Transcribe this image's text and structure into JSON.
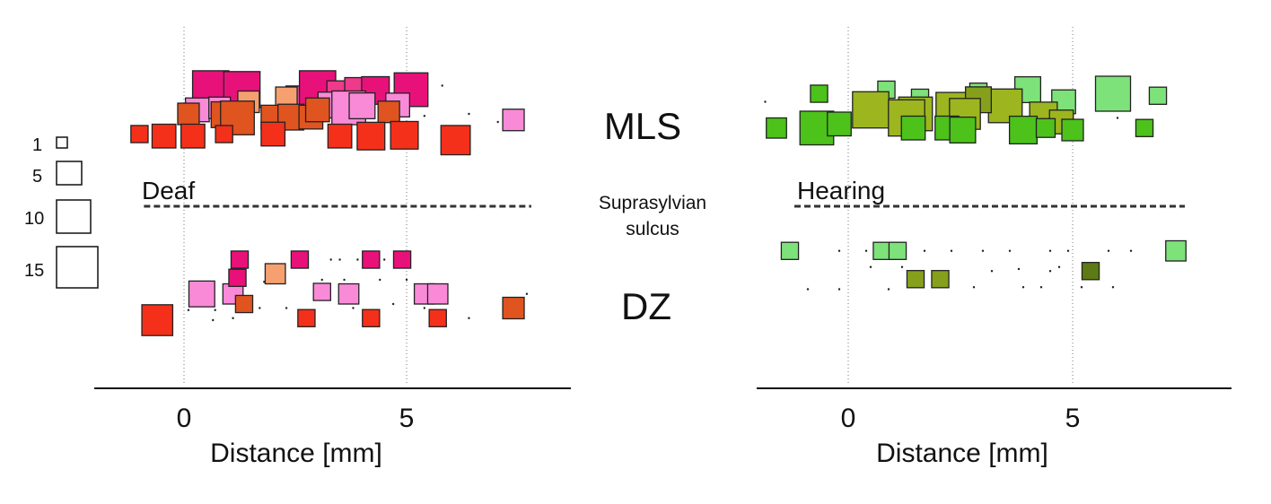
{
  "chart_data": {
    "type": "scatter",
    "marker_size_note": "square area encodes count",
    "center_labels": {
      "upper": "MLS",
      "middle": [
        "Suprasylvian",
        "sulcus"
      ],
      "lower": "DZ"
    },
    "size_legend": [
      {
        "label": "1",
        "value": 1
      },
      {
        "label": "5",
        "value": 5
      },
      {
        "label": "10",
        "value": 10
      },
      {
        "label": "15",
        "value": 15
      }
    ],
    "panels": [
      {
        "title": "Deaf",
        "xlabel": "Distance [mm]",
        "xticks": [
          0,
          5
        ],
        "xlim": [
          -2,
          8.6
        ],
        "gridlines_at": [
          0,
          5
        ],
        "sulcus_dashed_line": [
          -0.9,
          7.8
        ],
        "regions": [
          {
            "name": "MLS",
            "points": [
              {
                "x": 0.6,
                "y": 0.82,
                "size": 12,
                "color": "#E8117A"
              },
              {
                "x": 1.3,
                "y": 0.8,
                "size": 12,
                "color": "#E8117A"
              },
              {
                "x": 2.6,
                "y": 0.55,
                "size": 6,
                "color": "#EA4CA6"
              },
              {
                "x": 3.0,
                "y": 0.82,
                "size": 12,
                "color": "#E8117A"
              },
              {
                "x": 3.5,
                "y": 0.7,
                "size": 5,
                "color": "#EE3A8C"
              },
              {
                "x": 3.9,
                "y": 0.78,
                "size": 5,
                "color": "#EE3A8C"
              },
              {
                "x": 4.3,
                "y": 0.78,
                "size": 6,
                "color": "#E8117A"
              },
              {
                "x": 5.1,
                "y": 0.8,
                "size": 10,
                "color": "#E8117A"
              },
              {
                "x": 3.3,
                "y": 0.42,
                "size": 5,
                "color": "#F98AD8"
              },
              {
                "x": 3.7,
                "y": 0.35,
                "size": 10,
                "color": "#F98AD8"
              },
              {
                "x": 4.0,
                "y": 0.4,
                "size": 5,
                "color": "#F98AD8"
              },
              {
                "x": 4.8,
                "y": 0.42,
                "size": 4,
                "color": "#F98AD8"
              },
              {
                "x": 0.3,
                "y": 0.3,
                "size": 4,
                "color": "#F98AD8"
              },
              {
                "x": 0.8,
                "y": 0.35,
                "size": 3,
                "color": "#F98AD8"
              },
              {
                "x": 7.4,
                "y": 0.05,
                "size": 3,
                "color": "#F98AD8"
              },
              {
                "x": 1.45,
                "y": 0.5,
                "size": 3,
                "color": "#F6A070"
              },
              {
                "x": 2.3,
                "y": 0.6,
                "size": 3,
                "color": "#F6A070"
              },
              {
                "x": 0.1,
                "y": 0.2,
                "size": 3,
                "color": "#E0541F"
              },
              {
                "x": 0.9,
                "y": 0.18,
                "size": 5,
                "color": "#E0541F"
              },
              {
                "x": 1.2,
                "y": 0.1,
                "size": 10,
                "color": "#E0541F"
              },
              {
                "x": 2.0,
                "y": 0.12,
                "size": 4,
                "color": "#E0541F"
              },
              {
                "x": 2.4,
                "y": 0.12,
                "size": 5,
                "color": "#E0541F"
              },
              {
                "x": 2.85,
                "y": 0.12,
                "size": 4,
                "color": "#E0541F"
              },
              {
                "x": 3.0,
                "y": 0.3,
                "size": 4,
                "color": "#E0541F"
              },
              {
                "x": 4.6,
                "y": 0.25,
                "size": 3,
                "color": "#E0541F"
              },
              {
                "x": -1.0,
                "y": -0.3,
                "size": 1.5,
                "color": "#F5301A"
              },
              {
                "x": -0.45,
                "y": -0.35,
                "size": 4,
                "color": "#F5301A"
              },
              {
                "x": 0.2,
                "y": -0.35,
                "size": 4,
                "color": "#F5301A"
              },
              {
                "x": 0.9,
                "y": -0.3,
                "size": 1.5,
                "color": "#F5301A"
              },
              {
                "x": 2.0,
                "y": -0.3,
                "size": 4,
                "color": "#F5301A"
              },
              {
                "x": 3.5,
                "y": -0.35,
                "size": 4,
                "color": "#F5301A"
              },
              {
                "x": 4.2,
                "y": -0.35,
                "size": 6,
                "color": "#F5301A"
              },
              {
                "x": 4.95,
                "y": -0.33,
                "size": 6,
                "color": "#F5301A"
              },
              {
                "x": 6.1,
                "y": -0.45,
                "size": 7,
                "color": "#F5301A"
              }
            ],
            "dots": [
              [
                4.3,
                0.95
              ],
              [
                5.8,
                0.9
              ],
              [
                6.4,
                0.2
              ],
              [
                7.05,
                0.0
              ],
              [
                5.4,
                0.15
              ]
            ]
          },
          {
            "name": "DZ",
            "points": [
              {
                "x": -0.6,
                "y": -0.6,
                "size": 8,
                "color": "#F5301A"
              },
              {
                "x": 0.4,
                "y": 0.05,
                "size": 5,
                "color": "#F98AD8"
              },
              {
                "x": 1.1,
                "y": 0.05,
                "size": 2.5,
                "color": "#F98AD8"
              },
              {
                "x": 1.25,
                "y": 0.9,
                "size": 1.5,
                "color": "#E8117A"
              },
              {
                "x": 1.2,
                "y": 0.45,
                "size": 1.5,
                "color": "#E8117A"
              },
              {
                "x": 1.35,
                "y": -0.2,
                "size": 1.5,
                "color": "#E0541F"
              },
              {
                "x": 2.05,
                "y": 0.55,
                "size": 2.5,
                "color": "#F6A070"
              },
              {
                "x": 2.6,
                "y": 0.9,
                "size": 1.5,
                "color": "#E8117A"
              },
              {
                "x": 2.75,
                "y": -0.55,
                "size": 1.5,
                "color": "#F5301A"
              },
              {
                "x": 3.1,
                "y": 0.1,
                "size": 1.5,
                "color": "#F98AD8"
              },
              {
                "x": 3.7,
                "y": 0.05,
                "size": 2.5,
                "color": "#F98AD8"
              },
              {
                "x": 4.2,
                "y": 0.9,
                "size": 1.5,
                "color": "#E8117A"
              },
              {
                "x": 4.2,
                "y": -0.55,
                "size": 1.5,
                "color": "#F5301A"
              },
              {
                "x": 4.9,
                "y": 0.9,
                "size": 1.5,
                "color": "#E8117A"
              },
              {
                "x": 5.4,
                "y": 0.05,
                "size": 2.5,
                "color": "#F98AD8"
              },
              {
                "x": 5.7,
                "y": 0.05,
                "size": 2.5,
                "color": "#F98AD8"
              },
              {
                "x": 5.7,
                "y": -0.55,
                "size": 1.5,
                "color": "#F5301A"
              },
              {
                "x": 7.4,
                "y": -0.3,
                "size": 3,
                "color": "#E0541F"
              }
            ],
            "dots": [
              [
                3.3,
                0.9
              ],
              [
                3.5,
                0.9
              ],
              [
                3.9,
                0.9
              ],
              [
                4.5,
                0.9
              ],
              [
                3.1,
                0.4
              ],
              [
                3.6,
                0.4
              ],
              [
                4.4,
                0.4
              ],
              [
                5.0,
                0.4
              ],
              [
                0.1,
                -0.35
              ],
              [
                0.7,
                -0.35
              ],
              [
                0.65,
                -0.6
              ],
              [
                1.1,
                -0.55
              ],
              [
                1.7,
                -0.3
              ],
              [
                2.3,
                -0.3
              ],
              [
                2.8,
                -0.4
              ],
              [
                3.8,
                -0.3
              ],
              [
                4.7,
                -0.2
              ],
              [
                5.4,
                -0.3
              ],
              [
                6.4,
                -0.55
              ],
              [
                7.7,
                0.05
              ],
              [
                0.65,
                0.35
              ],
              [
                0.9,
                0.2
              ],
              [
                1.8,
                0.35
              ]
            ]
          }
        ]
      },
      {
        "title": "Hearing",
        "xlabel": "Distance [mm]",
        "xticks": [
          0,
          5
        ],
        "xlim": [
          -2,
          8.5
        ],
        "gridlines_at": [
          0,
          5
        ],
        "sulcus_dashed_line": [
          -1.2,
          7.5
        ],
        "regions": [
          {
            "name": "MLS",
            "points": [
              {
                "x": -0.65,
                "y": 0.7,
                "size": 1.5,
                "color": "#4CC21A"
              },
              {
                "x": 0.85,
                "y": 0.8,
                "size": 1.5,
                "color": "#7DE27A"
              },
              {
                "x": 1.6,
                "y": 0.6,
                "size": 1.5,
                "color": "#7DE27A"
              },
              {
                "x": 2.9,
                "y": 0.75,
                "size": 1.5,
                "color": "#7DE27A"
              },
              {
                "x": 4.0,
                "y": 0.8,
                "size": 5,
                "color": "#7DE27A"
              },
              {
                "x": 4.8,
                "y": 0.5,
                "size": 4,
                "color": "#7DE27A"
              },
              {
                "x": 5.9,
                "y": 0.7,
                "size": 11,
                "color": "#7DE27A"
              },
              {
                "x": 6.9,
                "y": 0.65,
                "size": 1.5,
                "color": "#7DE27A"
              },
              {
                "x": 1.5,
                "y": 0.2,
                "size": 10,
                "color": "#9DB51E"
              },
              {
                "x": 2.3,
                "y": 0.35,
                "size": 8,
                "color": "#9DB51E"
              },
              {
                "x": 3.5,
                "y": 0.4,
                "size": 10,
                "color": "#9DB51E"
              },
              {
                "x": 2.9,
                "y": 0.55,
                "size": 5,
                "color": "#86A01B"
              },
              {
                "x": 0.5,
                "y": 0.3,
                "size": 12,
                "color": "#9DB51E"
              },
              {
                "x": 1.3,
                "y": 0.1,
                "size": 12,
                "color": "#9DB51E"
              },
              {
                "x": 2.6,
                "y": 0.2,
                "size": 8,
                "color": "#9DB51E"
              },
              {
                "x": 4.35,
                "y": 0.15,
                "size": 6,
                "color": "#9DB51E"
              },
              {
                "x": 4.75,
                "y": 0.0,
                "size": 4,
                "color": "#9DB51E"
              },
              {
                "x": -1.6,
                "y": -0.15,
                "size": 2.5,
                "color": "#4CC21A"
              },
              {
                "x": -0.7,
                "y": -0.15,
                "size": 10,
                "color": "#4CC21A"
              },
              {
                "x": -0.2,
                "y": -0.05,
                "size": 4,
                "color": "#4CC21A"
              },
              {
                "x": 1.45,
                "y": -0.15,
                "size": 4,
                "color": "#4CC21A"
              },
              {
                "x": 2.2,
                "y": -0.15,
                "size": 4,
                "color": "#4CC21A"
              },
              {
                "x": 2.55,
                "y": -0.2,
                "size": 5,
                "color": "#4CC21A"
              },
              {
                "x": 3.9,
                "y": -0.2,
                "size": 6,
                "color": "#4CC21A"
              },
              {
                "x": 4.4,
                "y": -0.15,
                "size": 2,
                "color": "#4CC21A"
              },
              {
                "x": 5.0,
                "y": -0.2,
                "size": 3,
                "color": "#4CC21A"
              },
              {
                "x": 6.6,
                "y": -0.15,
                "size": 1.5,
                "color": "#4CC21A"
              }
            ],
            "dots": [
              [
                -1.85,
                0.5
              ],
              [
                6.0,
                0.1
              ]
            ]
          },
          {
            "name": "DZ",
            "points": [
              {
                "x": -1.3,
                "y": 0.85,
                "size": 1.5,
                "color": "#7DE27A"
              },
              {
                "x": 0.75,
                "y": 0.85,
                "size": 1.5,
                "color": "#7DE27A"
              },
              {
                "x": 1.1,
                "y": 0.85,
                "size": 1.5,
                "color": "#7DE27A"
              },
              {
                "x": 1.5,
                "y": 0.15,
                "size": 1.5,
                "color": "#86A01B"
              },
              {
                "x": 2.05,
                "y": 0.15,
                "size": 1.5,
                "color": "#86A01B"
              },
              {
                "x": 5.4,
                "y": 0.35,
                "size": 1.5,
                "color": "#5E7A14"
              },
              {
                "x": 7.3,
                "y": 0.85,
                "size": 2.5,
                "color": "#7DE27A"
              }
            ],
            "dots": [
              [
                -0.2,
                0.85
              ],
              [
                0.4,
                0.85
              ],
              [
                1.7,
                0.85
              ],
              [
                2.3,
                0.85
              ],
              [
                3.0,
                0.85
              ],
              [
                3.6,
                0.85
              ],
              [
                4.5,
                0.85
              ],
              [
                4.9,
                0.85
              ],
              [
                5.8,
                0.85
              ],
              [
                6.3,
                0.85
              ],
              [
                -0.9,
                -0.1
              ],
              [
                -0.2,
                -0.1
              ],
              [
                0.9,
                -0.1
              ],
              [
                2.0,
                -0.05
              ],
              [
                2.8,
                -0.05
              ],
              [
                3.9,
                -0.05
              ],
              [
                4.3,
                -0.05
              ],
              [
                5.2,
                -0.05
              ],
              [
                5.9,
                -0.05
              ],
              [
                0.5,
                0.45
              ],
              [
                1.2,
                0.45
              ],
              [
                3.2,
                0.35
              ],
              [
                3.8,
                0.4
              ],
              [
                4.5,
                0.35
              ],
              [
                4.7,
                0.45
              ]
            ]
          }
        ]
      }
    ]
  }
}
